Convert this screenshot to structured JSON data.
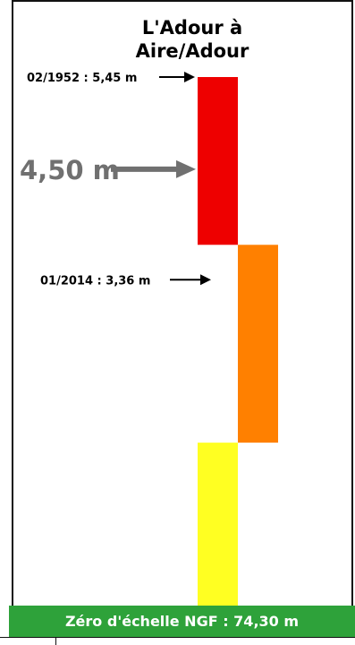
{
  "station": {
    "title_line1": "L'Adour à",
    "title_line2": "Aire/Adour"
  },
  "footer": {
    "zero_label": "Zéro d'échelle NGF : 74,30 m"
  },
  "chart_data": {
    "type": "bar",
    "ylim": [
      0,
      5.45
    ],
    "bars": [
      {
        "color": "#ffff22",
        "from": 0,
        "to": 1.68,
        "column": "left"
      },
      {
        "color": "#ff8000",
        "from": 1.68,
        "to": 3.72,
        "column": "right"
      },
      {
        "color": "#ee0000",
        "from": 3.72,
        "to": 5.45,
        "column": "left"
      }
    ],
    "markers": [
      {
        "label": "02/1952 : 5,45 m",
        "value": 5.45,
        "style": "small"
      },
      {
        "label": "4,50 m",
        "value": 4.5,
        "style": "large"
      },
      {
        "label": "01/2014 : 3,36 m",
        "value": 3.36,
        "style": "small"
      }
    ],
    "colors": {
      "marker_large": "#707070",
      "marker_small": "#000000",
      "banner": "#2ea23a"
    }
  }
}
